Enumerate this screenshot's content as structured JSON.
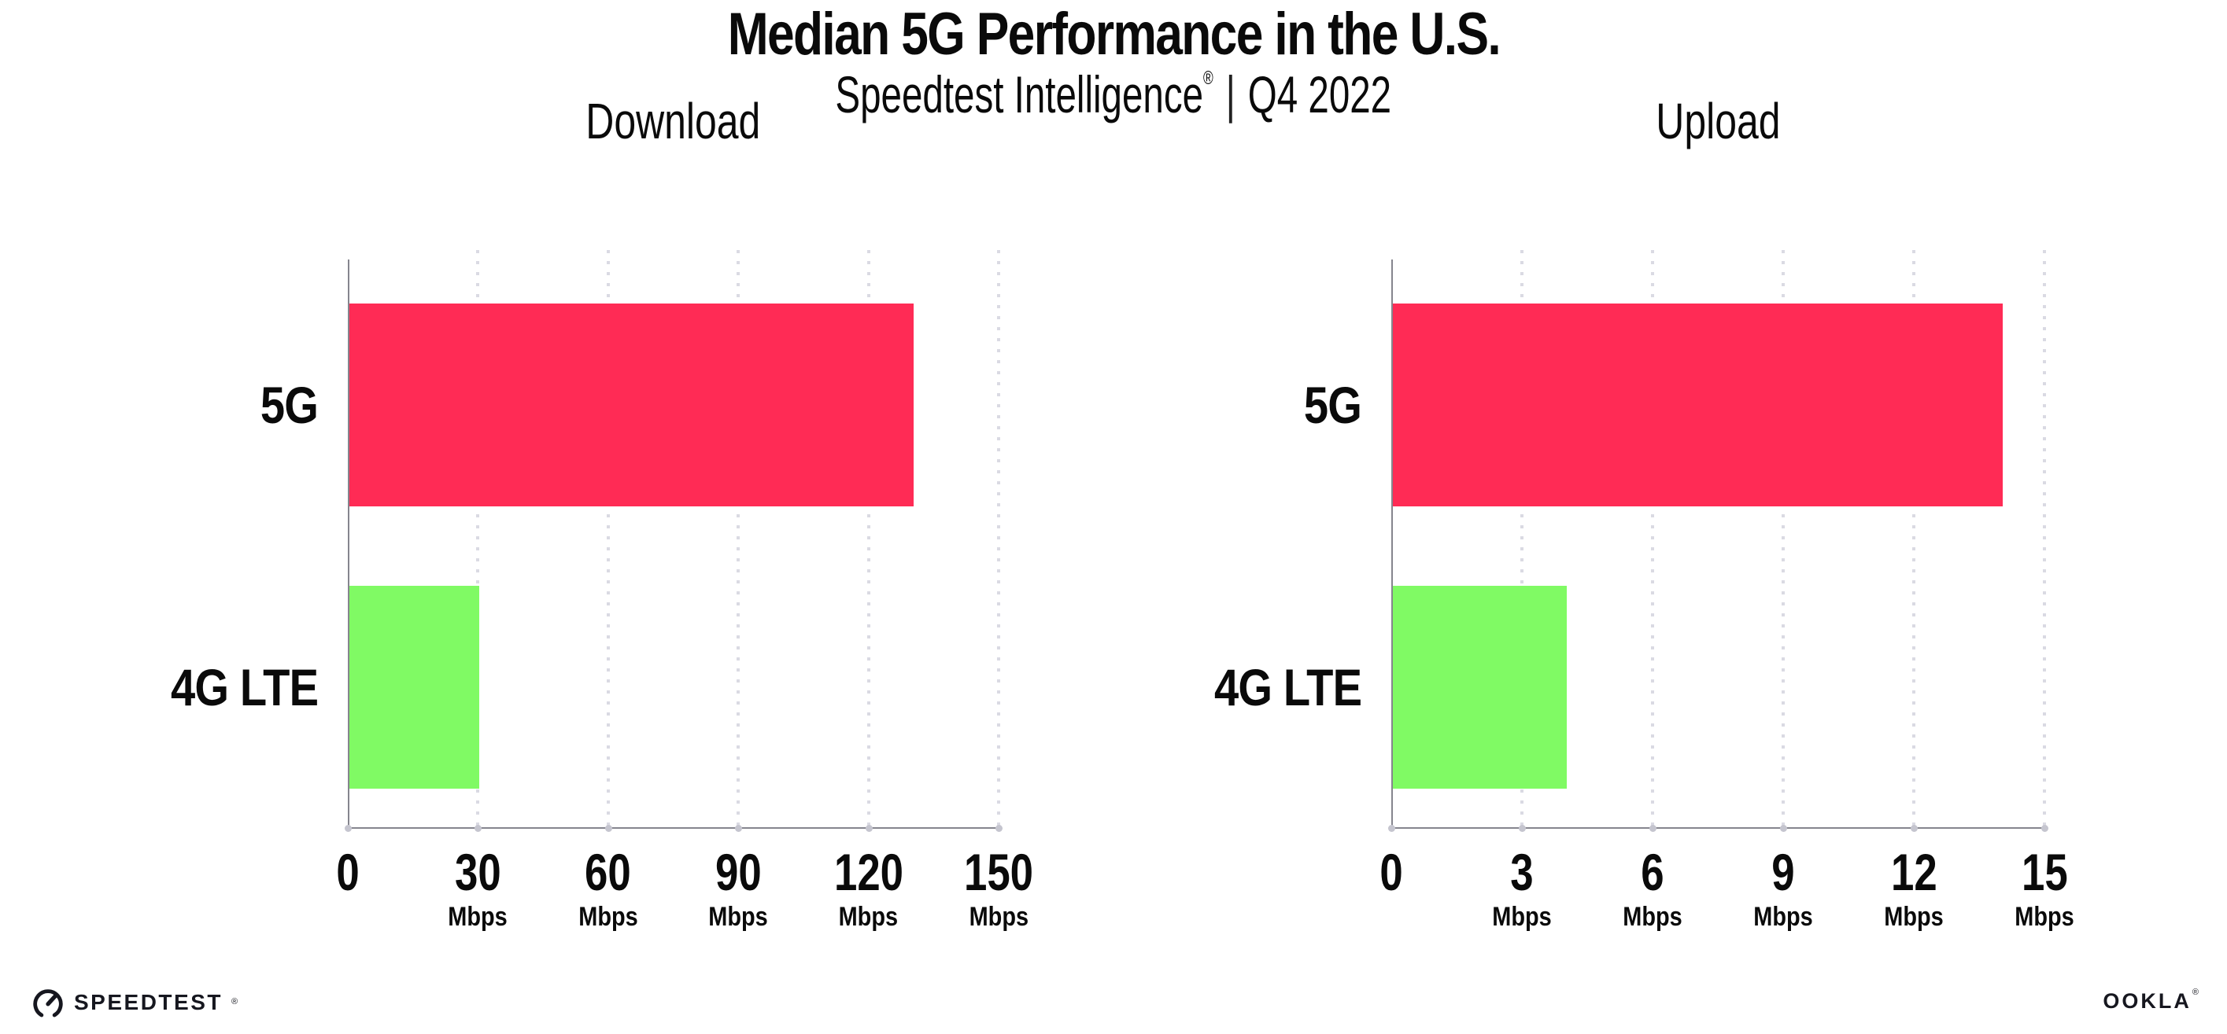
{
  "header": {
    "title": "Median 5G Performance in the U.S.",
    "subtitle": {
      "brand": "Speedtest Intelligence",
      "reg_mark": "®",
      "separator": "|",
      "period": "Q4 2022"
    }
  },
  "chart_data": [
    {
      "type": "bar",
      "orientation": "horizontal",
      "title": "Download",
      "categories": [
        "5G",
        "4G LTE"
      ],
      "values": [
        130,
        30
      ],
      "value_unit": "Mbps",
      "xlim": [
        0,
        150
      ],
      "xticks": [
        0,
        30,
        60,
        90,
        120,
        150
      ],
      "xtick_unit": "Mbps",
      "bar_colors": [
        "#ff2b55",
        "#80fa64"
      ],
      "grid": "dotted-vertical",
      "legend": "none"
    },
    {
      "type": "bar",
      "orientation": "horizontal",
      "title": "Upload",
      "categories": [
        "5G",
        "4G LTE"
      ],
      "values": [
        14,
        4
      ],
      "value_unit": "Mbps",
      "xlim": [
        0,
        15
      ],
      "xticks": [
        0,
        3,
        6,
        9,
        12,
        15
      ],
      "xtick_unit": "Mbps",
      "bar_colors": [
        "#ff2b55",
        "#80fa64"
      ],
      "grid": "dotted-vertical",
      "legend": "none"
    }
  ],
  "footer": {
    "speedtest": {
      "label": "SPEEDTEST",
      "reg_mark": "®",
      "icon": "speedometer-gauge-icon"
    },
    "ookla": {
      "label": "OOKLA",
      "reg_mark": "®"
    }
  },
  "colors": {
    "background": "#ffffff",
    "bar_5g": "#ff2b55",
    "bar_4g_lte": "#80fa64",
    "gridline": "#dadae3",
    "axis_line": "#85858e",
    "axis_tick_dot": "#c5c5cf",
    "text": "#0a0a0a"
  }
}
